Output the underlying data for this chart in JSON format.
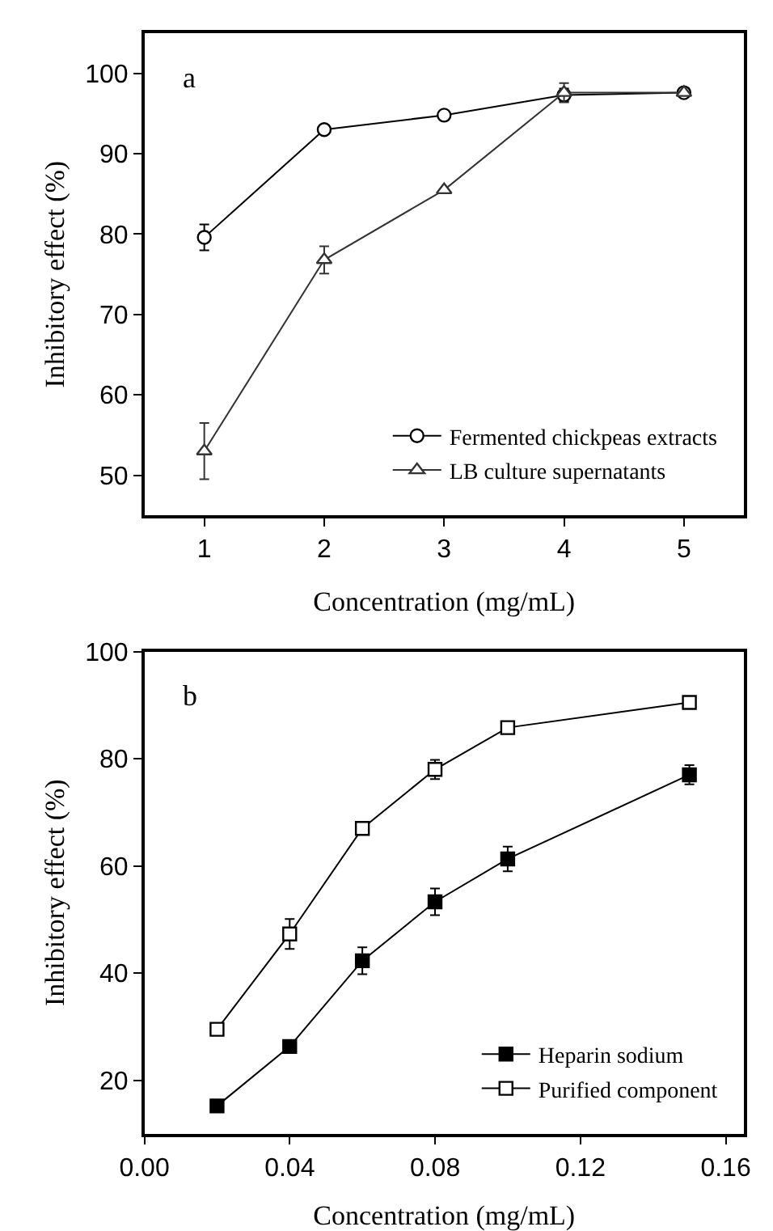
{
  "chart_data": [
    {
      "type": "line",
      "annotations": [
        "a"
      ],
      "xlabel": "Concentration (mg/mL)",
      "ylabel": "Inhibitory effect (%)",
      "x": [
        1,
        2,
        3,
        4,
        5
      ],
      "xlim": [
        0.5,
        5.5
      ],
      "xticks": [
        1,
        2,
        3,
        4,
        5
      ],
      "ylim": [
        45,
        105
      ],
      "yticks": [
        50,
        60,
        70,
        80,
        90,
        100
      ],
      "legend": "bottom right",
      "line_style": "solid",
      "series": [
        {
          "name": "Fermented chickpeas extracts",
          "color": "#000000",
          "marker": "circle",
          "colors": [
            "#ffffff",
            "#ffffff",
            "#ffffff",
            "#ffffff",
            "#ffffff"
          ],
          "values": [
            79.6,
            93,
            94.8,
            97.3,
            97.6
          ],
          "errors": [
            1.6,
            null,
            null,
            0.8,
            null
          ]
        },
        {
          "name": "LB culture supernatants",
          "color": "#333333",
          "marker": "triangle",
          "colors": [
            "#ffffff",
            "#ffffff",
            "#ffffff",
            "#ffffff",
            "#ffffff"
          ],
          "values": [
            53,
            76.8,
            85.5,
            97.6,
            97.6
          ],
          "errors": [
            3.5,
            1.7,
            null,
            1.2,
            null
          ]
        }
      ]
    },
    {
      "type": "line",
      "annotations": [
        "b"
      ],
      "xlabel": "Concentration (mg/mL)",
      "ylabel": "Inhibitory effect (%)",
      "x": [
        0.02,
        0.04,
        0.06,
        0.08,
        0.1,
        0.15
      ],
      "xlim": [
        0,
        0.165
      ],
      "xticks": [
        {
          "value": 0,
          "label": "0.00"
        },
        0.04,
        0.08,
        0.12,
        0.16
      ],
      "ylim": [
        10,
        100
      ],
      "yticks": [
        20,
        40,
        60,
        80,
        100
      ],
      "legend": "bottom right",
      "line_style": "solid",
      "series": [
        {
          "name": "Heparin sodium",
          "color": "#000000",
          "marker": "square",
          "values": [
            15.2,
            26.3,
            42.3,
            53.3,
            61.3,
            77
          ],
          "errors": [
            null,
            null,
            2.5,
            2.5,
            2.3,
            1.8
          ]
        },
        {
          "name": "Purified component",
          "color": "#000000",
          "marker": "square",
          "colors": [
            "#ffffff",
            "#ffffff",
            "#ffffff",
            "#ffffff",
            "#ffffff",
            "#ffffff"
          ],
          "values": [
            29.5,
            47.3,
            67,
            78,
            85.8,
            90.5
          ],
          "errors": [
            null,
            2.8,
            null,
            1.8,
            null,
            0.5
          ]
        }
      ]
    }
  ]
}
